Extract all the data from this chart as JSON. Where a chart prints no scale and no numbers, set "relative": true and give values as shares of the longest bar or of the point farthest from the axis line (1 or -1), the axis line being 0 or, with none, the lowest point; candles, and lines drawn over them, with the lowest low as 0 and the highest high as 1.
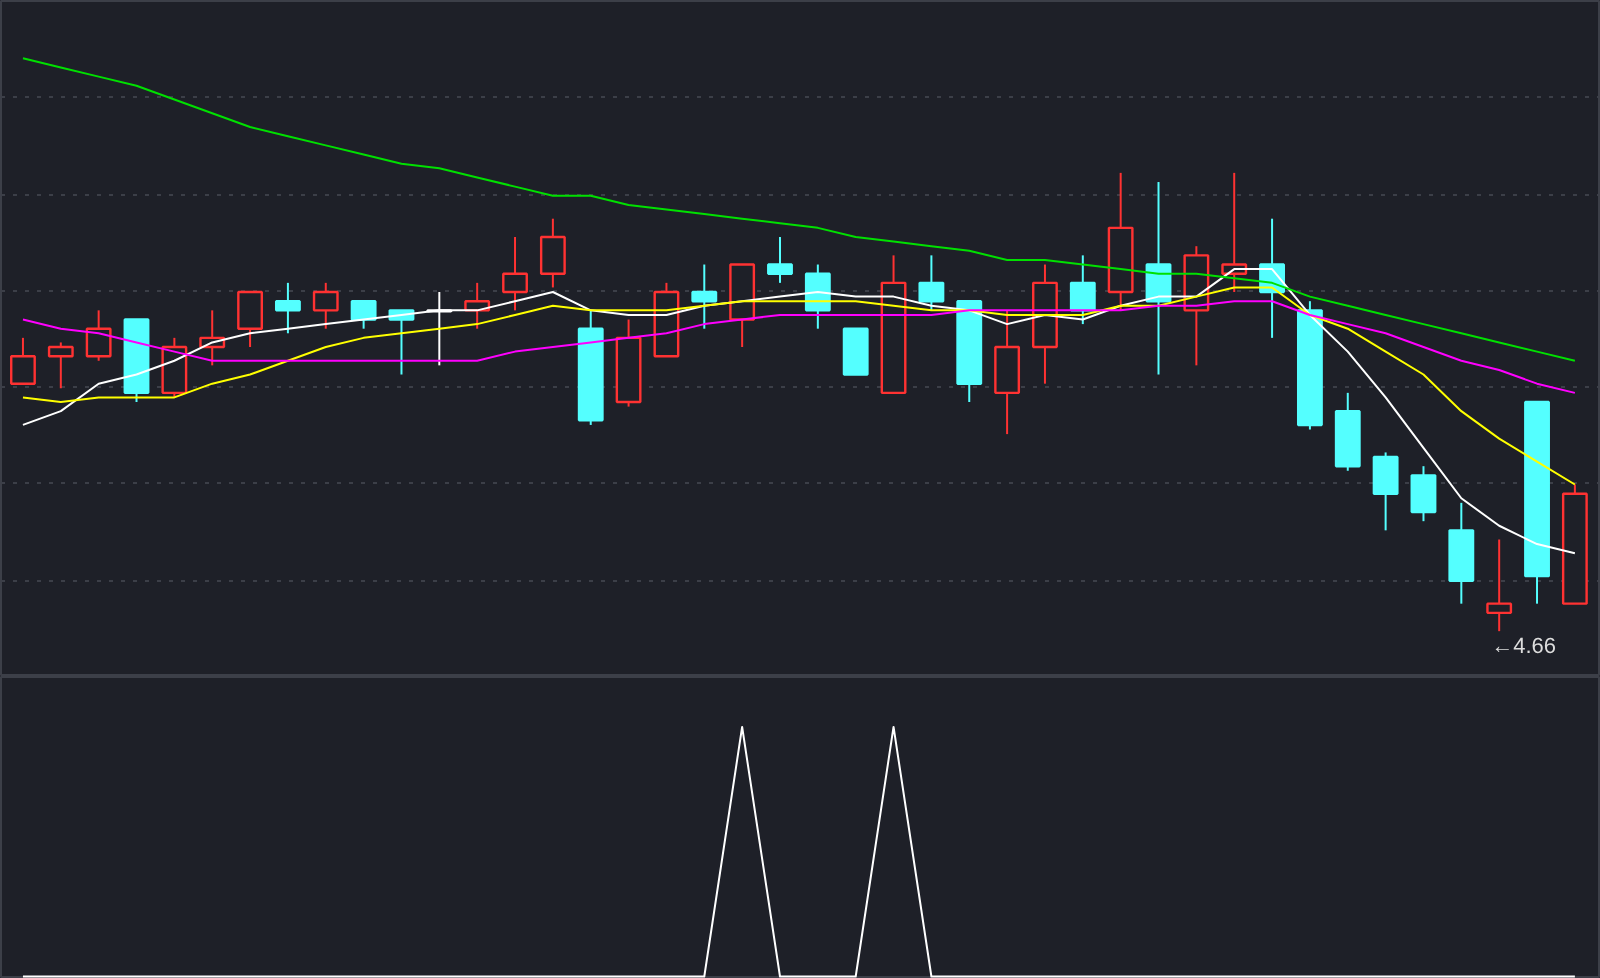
{
  "chart_data": [
    {
      "type": "candlestick",
      "relative": true,
      "grid": "y",
      "categories": [
        null,
        null,
        null,
        null,
        null,
        null,
        null,
        null,
        null,
        null,
        null,
        null,
        null,
        null,
        null,
        null,
        null,
        null,
        null,
        null,
        null,
        null,
        null,
        null,
        null,
        null,
        null,
        null,
        null,
        null,
        null,
        null,
        null,
        null,
        null,
        null,
        null,
        null,
        null,
        null,
        null,
        null
      ],
      "ohlc": [
        [
          0.54,
          0.64,
          0.54,
          0.6
        ],
        [
          0.6,
          0.63,
          0.53,
          0.62
        ],
        [
          0.6,
          0.7,
          0.59,
          0.66
        ],
        [
          0.68,
          0.68,
          0.5,
          0.52
        ],
        [
          0.52,
          0.64,
          0.51,
          0.62
        ],
        [
          0.62,
          0.7,
          0.58,
          0.64
        ],
        [
          0.66,
          0.74,
          0.62,
          0.74
        ],
        [
          0.72,
          0.76,
          0.65,
          0.7
        ],
        [
          0.7,
          0.76,
          0.66,
          0.74
        ],
        [
          0.72,
          0.72,
          0.66,
          0.68
        ],
        [
          0.7,
          0.7,
          0.56,
          0.68
        ],
        [
          0.7,
          0.74,
          0.58,
          0.7
        ],
        [
          0.7,
          0.76,
          0.66,
          0.72
        ],
        [
          0.74,
          0.86,
          0.7,
          0.78
        ],
        [
          0.78,
          0.9,
          0.75,
          0.86
        ],
        [
          0.66,
          0.7,
          0.45,
          0.46
        ],
        [
          0.5,
          0.68,
          0.49,
          0.64
        ],
        [
          0.6,
          0.76,
          0.6,
          0.74
        ],
        [
          0.74,
          0.8,
          0.66,
          0.72
        ],
        [
          0.68,
          0.8,
          0.62,
          0.8
        ],
        [
          0.8,
          0.86,
          0.76,
          0.78
        ],
        [
          0.78,
          0.8,
          0.66,
          0.7
        ],
        [
          0.66,
          0.66,
          0.56,
          0.56
        ],
        [
          0.52,
          0.82,
          0.52,
          0.76
        ],
        [
          0.76,
          0.82,
          0.7,
          0.72
        ],
        [
          0.72,
          0.72,
          0.5,
          0.54
        ],
        [
          0.52,
          0.7,
          0.43,
          0.62
        ],
        [
          0.62,
          0.8,
          0.54,
          0.76
        ],
        [
          0.76,
          0.82,
          0.67,
          0.7
        ],
        [
          0.74,
          1.0,
          0.7,
          0.88
        ],
        [
          0.8,
          0.98,
          0.56,
          0.72
        ],
        [
          0.7,
          0.84,
          0.58,
          0.82
        ],
        [
          0.78,
          1.0,
          0.74,
          0.8
        ],
        [
          0.8,
          0.9,
          0.64,
          0.74
        ],
        [
          0.7,
          0.72,
          0.44,
          0.45
        ],
        [
          0.48,
          0.52,
          0.35,
          0.36
        ],
        [
          0.38,
          0.39,
          0.22,
          0.3
        ],
        [
          0.34,
          0.36,
          0.24,
          0.26
        ],
        [
          0.22,
          0.28,
          0.06,
          0.11
        ],
        [
          0.04,
          0.2,
          0.0,
          0.06
        ],
        [
          0.5,
          0.5,
          0.06,
          0.12
        ],
        [
          0.06,
          0.32,
          0.06,
          0.3
        ]
      ],
      "colors": [
        "#ff3232",
        "#ff3232",
        "#ff3232",
        "#54ffff",
        "#ff3232",
        "#ff3232",
        "#ff3232",
        "#54ffff",
        "#ff3232",
        "#54ffff",
        "#54ffff",
        "#ffffff",
        "#ff3232",
        "#ff3232",
        "#ff3232",
        "#54ffff",
        "#ff3232",
        "#ff3232",
        "#54ffff",
        "#ff3232",
        "#54ffff",
        "#54ffff",
        "#54ffff",
        "#ff3232",
        "#54ffff",
        "#54ffff",
        "#ff3232",
        "#ff3232",
        "#54ffff",
        "#ff3232",
        "#54ffff",
        "#ff3232",
        "#ff3232",
        "#54ffff",
        "#54ffff",
        "#54ffff",
        "#54ffff",
        "#54ffff",
        "#54ffff",
        "#ff3232",
        "#54ffff",
        "#ff3232"
      ],
      "series": [
        {
          "type": "line",
          "color": "#ffffff",
          "values": [
            0.45,
            0.48,
            0.54,
            0.56,
            0.59,
            0.63,
            0.65,
            0.66,
            0.67,
            0.68,
            0.69,
            0.7,
            0.7,
            0.72,
            0.74,
            0.7,
            0.69,
            0.69,
            0.71,
            0.72,
            0.73,
            0.74,
            0.73,
            0.73,
            0.71,
            0.7,
            0.67,
            0.69,
            0.68,
            0.71,
            0.73,
            0.73,
            0.79,
            0.79,
            0.69,
            0.61,
            0.51,
            0.4,
            0.29,
            0.23,
            0.19,
            0.17
          ]
        },
        {
          "type": "line",
          "color": "#ffff00",
          "values": [
            0.51,
            0.5,
            0.51,
            0.51,
            0.51,
            0.54,
            0.56,
            0.59,
            0.62,
            0.64,
            0.65,
            0.66,
            0.67,
            0.69,
            0.71,
            0.7,
            0.7,
            0.7,
            0.71,
            0.72,
            0.72,
            0.72,
            0.72,
            0.71,
            0.7,
            0.7,
            0.69,
            0.69,
            0.69,
            0.71,
            0.71,
            0.73,
            0.75,
            0.75,
            0.69,
            0.66,
            0.61,
            0.56,
            0.48,
            0.42,
            0.37,
            0.32
          ]
        },
        {
          "type": "line",
          "color": "#ff00ff",
          "values": [
            0.68,
            0.66,
            0.65,
            0.63,
            0.61,
            0.59,
            0.59,
            0.59,
            0.59,
            0.59,
            0.59,
            0.59,
            0.59,
            0.61,
            0.62,
            0.63,
            0.64,
            0.65,
            0.67,
            0.68,
            0.69,
            0.69,
            0.69,
            0.69,
            0.69,
            0.7,
            0.7,
            0.7,
            0.7,
            0.7,
            0.71,
            0.71,
            0.72,
            0.72,
            0.69,
            0.67,
            0.65,
            0.62,
            0.59,
            0.57,
            0.54,
            0.52
          ]
        },
        {
          "type": "line",
          "color": "#00e000",
          "values": [
            1.25,
            1.23,
            1.21,
            1.19,
            1.16,
            1.13,
            1.1,
            1.08,
            1.06,
            1.04,
            1.02,
            1.01,
            0.99,
            0.97,
            0.95,
            0.95,
            0.93,
            0.92,
            0.91,
            0.9,
            0.89,
            0.88,
            0.86,
            0.85,
            0.84,
            0.83,
            0.81,
            0.81,
            0.8,
            0.79,
            0.78,
            0.78,
            0.77,
            0.76,
            0.73,
            0.71,
            0.69,
            0.67,
            0.65,
            0.63,
            0.61,
            0.59
          ]
        }
      ],
      "annotations": [
        "←4.66"
      ]
    },
    {
      "type": "line",
      "relative": true,
      "categories": [
        null,
        null,
        null,
        null,
        null,
        null,
        null,
        null,
        null,
        null,
        null,
        null,
        null,
        null,
        null,
        null,
        null,
        null,
        null,
        null,
        null,
        null,
        null,
        null,
        null,
        null,
        null,
        null,
        null,
        null,
        null,
        null,
        null,
        null,
        null,
        null,
        null,
        null,
        null,
        null,
        null,
        null
      ],
      "series": [
        {
          "color": "#ffffff",
          "values": [
            0,
            0,
            0,
            0,
            0,
            0,
            0,
            0,
            0,
            0,
            0,
            0,
            0,
            0,
            0,
            0,
            0,
            0,
            0,
            1,
            0,
            0,
            0,
            1,
            0,
            0,
            0,
            0,
            0,
            0,
            0,
            0,
            0,
            0,
            0,
            0,
            0,
            0,
            0,
            0,
            0,
            0
          ]
        }
      ]
    }
  ]
}
